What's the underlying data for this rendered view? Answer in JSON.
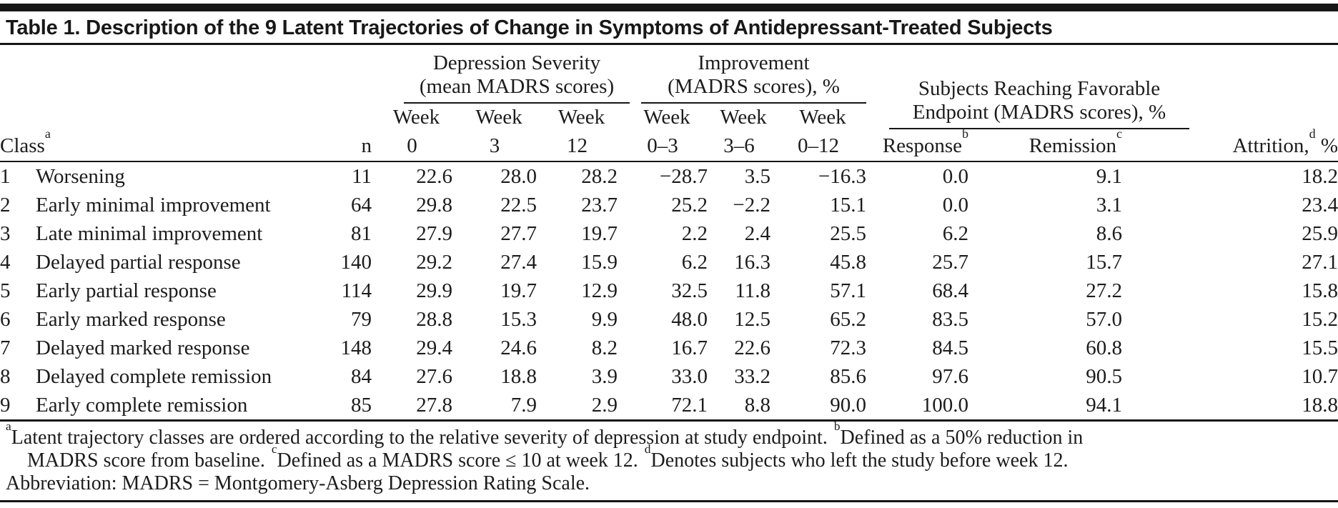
{
  "table": {
    "title": "Table 1. Description of the 9 Latent Trajectories of Change in Symptoms of Antidepressant-Treated Subjects",
    "col_groups": {
      "depression_severity": {
        "line1": "Depression Severity",
        "line2": "(mean MADRS scores)"
      },
      "improvement": {
        "line1": "Improvement",
        "line2": "(MADRS scores), %"
      },
      "favorable_endpoint": {
        "line1": "Subjects Reaching Favorable",
        "line2": "Endpoint (MADRS scores), %"
      }
    },
    "headers": {
      "class": {
        "label": "Class",
        "sup": "a"
      },
      "n": "n",
      "week_label": "Week",
      "week_numbers": [
        "0",
        "3",
        "12",
        "0–3",
        "3–6",
        "0–12"
      ],
      "response": {
        "label": "Response",
        "sup": "b"
      },
      "remission": {
        "label": "Remission",
        "sup": "c"
      },
      "attrition": {
        "pre": "Attrition,",
        "sup": "d",
        "post": " %"
      }
    },
    "rows": [
      {
        "num": "1",
        "label": "Worsening",
        "values": [
          "11",
          "22.6",
          "28.0",
          "28.2",
          "−28.7",
          "3.5",
          "−16.3",
          "0.0",
          "9.1",
          "18.2"
        ]
      },
      {
        "num": "2",
        "label": "Early minimal improvement",
        "values": [
          "64",
          "29.8",
          "22.5",
          "23.7",
          "25.2",
          "−2.2",
          "15.1",
          "0.0",
          "3.1",
          "23.4"
        ]
      },
      {
        "num": "3",
        "label": "Late minimal improvement",
        "values": [
          "81",
          "27.9",
          "27.7",
          "19.7",
          "2.2",
          "2.4",
          "25.5",
          "6.2",
          "8.6",
          "25.9"
        ]
      },
      {
        "num": "4",
        "label": "Delayed partial response",
        "values": [
          "140",
          "29.2",
          "27.4",
          "15.9",
          "6.2",
          "16.3",
          "45.8",
          "25.7",
          "15.7",
          "27.1"
        ]
      },
      {
        "num": "5",
        "label": "Early partial response",
        "values": [
          "114",
          "29.9",
          "19.7",
          "12.9",
          "32.5",
          "11.8",
          "57.1",
          "68.4",
          "27.2",
          "15.8"
        ]
      },
      {
        "num": "6",
        "label": "Early marked response",
        "values": [
          "79",
          "28.8",
          "15.3",
          "9.9",
          "48.0",
          "12.5",
          "65.2",
          "83.5",
          "57.0",
          "15.2"
        ]
      },
      {
        "num": "7",
        "label": "Delayed marked response",
        "values": [
          "148",
          "29.4",
          "24.6",
          "8.2",
          "16.7",
          "22.6",
          "72.3",
          "84.5",
          "60.8",
          "15.5"
        ]
      },
      {
        "num": "8",
        "label": "Delayed complete remission",
        "values": [
          "84",
          "27.6",
          "18.8",
          "3.9",
          "33.0",
          "33.2",
          "85.6",
          "97.6",
          "90.5",
          "10.7"
        ]
      },
      {
        "num": "9",
        "label": "Early complete remission",
        "values": [
          "85",
          "27.8",
          "7.9",
          "2.9",
          "72.1",
          "8.8",
          "90.0",
          "100.0",
          "94.1",
          "18.8"
        ]
      }
    ]
  },
  "footnotes": {
    "sup_a": "a",
    "text_a": "Latent trajectory classes are ordered according to the relative severity of depression at study endpoint.",
    "sup_b": "b",
    "text_b1": "Defined as a 50% reduction in",
    "text_b2": "MADRS score from baseline.",
    "sup_c": "c",
    "text_c": "Defined as a MADRS score ≤ 10 at week 12.",
    "sup_d": "d",
    "text_d": "Denotes subjects who left the study before week 12.",
    "abbreviation": "Abbreviation: MADRS = Montgomery-Asberg Depression Rating Scale."
  },
  "colors": {
    "text": "#1c1c1c",
    "rule": "#161616",
    "background": "#ffffff"
  }
}
